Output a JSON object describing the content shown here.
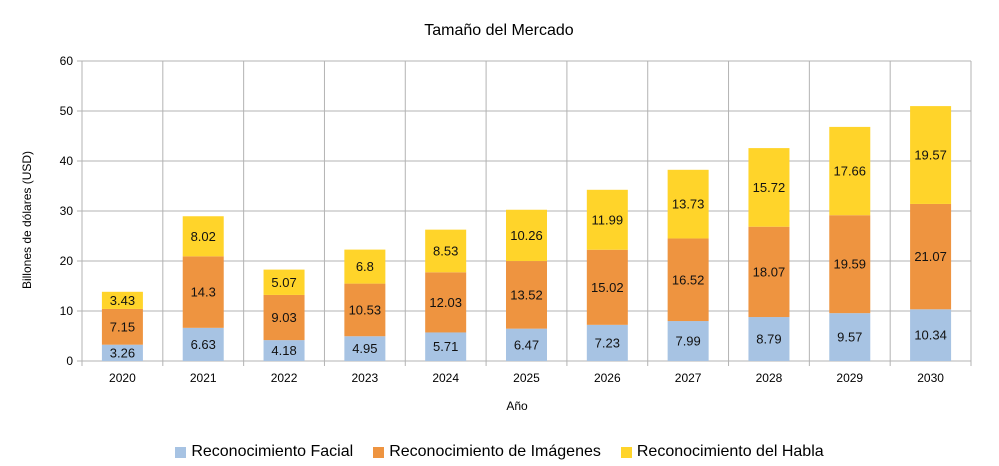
{
  "chart_data": {
    "type": "bar",
    "stacked": true,
    "title": "Tamaño del Mercado",
    "xlabel": "Año",
    "ylabel": "Billones de dólares (USD)",
    "ylim": [
      0,
      60
    ],
    "yticks": [
      0,
      10,
      20,
      30,
      40,
      50,
      60
    ],
    "grid": true,
    "legend_position": "bottom",
    "categories": [
      "2020",
      "2021",
      "2022",
      "2023",
      "2024",
      "2025",
      "2026",
      "2027",
      "2028",
      "2029",
      "2030"
    ],
    "series": [
      {
        "name": "Reconocimiento Facial",
        "color": "#a7c3e3",
        "values": [
          3.26,
          6.63,
          4.18,
          4.95,
          5.71,
          6.47,
          7.23,
          7.99,
          8.79,
          9.57,
          10.34
        ]
      },
      {
        "name": "Reconocimiento de Imágenes",
        "color": "#ee9440",
        "values": [
          7.15,
          14.3,
          9.03,
          10.53,
          12.03,
          13.52,
          15.02,
          16.52,
          18.07,
          19.59,
          21.07
        ]
      },
      {
        "name": "Reconocimiento del Habla",
        "color": "#ffd42a",
        "values": [
          3.43,
          8.02,
          5.07,
          6.8,
          8.53,
          10.26,
          11.99,
          13.73,
          15.72,
          17.66,
          19.57
        ]
      }
    ]
  }
}
